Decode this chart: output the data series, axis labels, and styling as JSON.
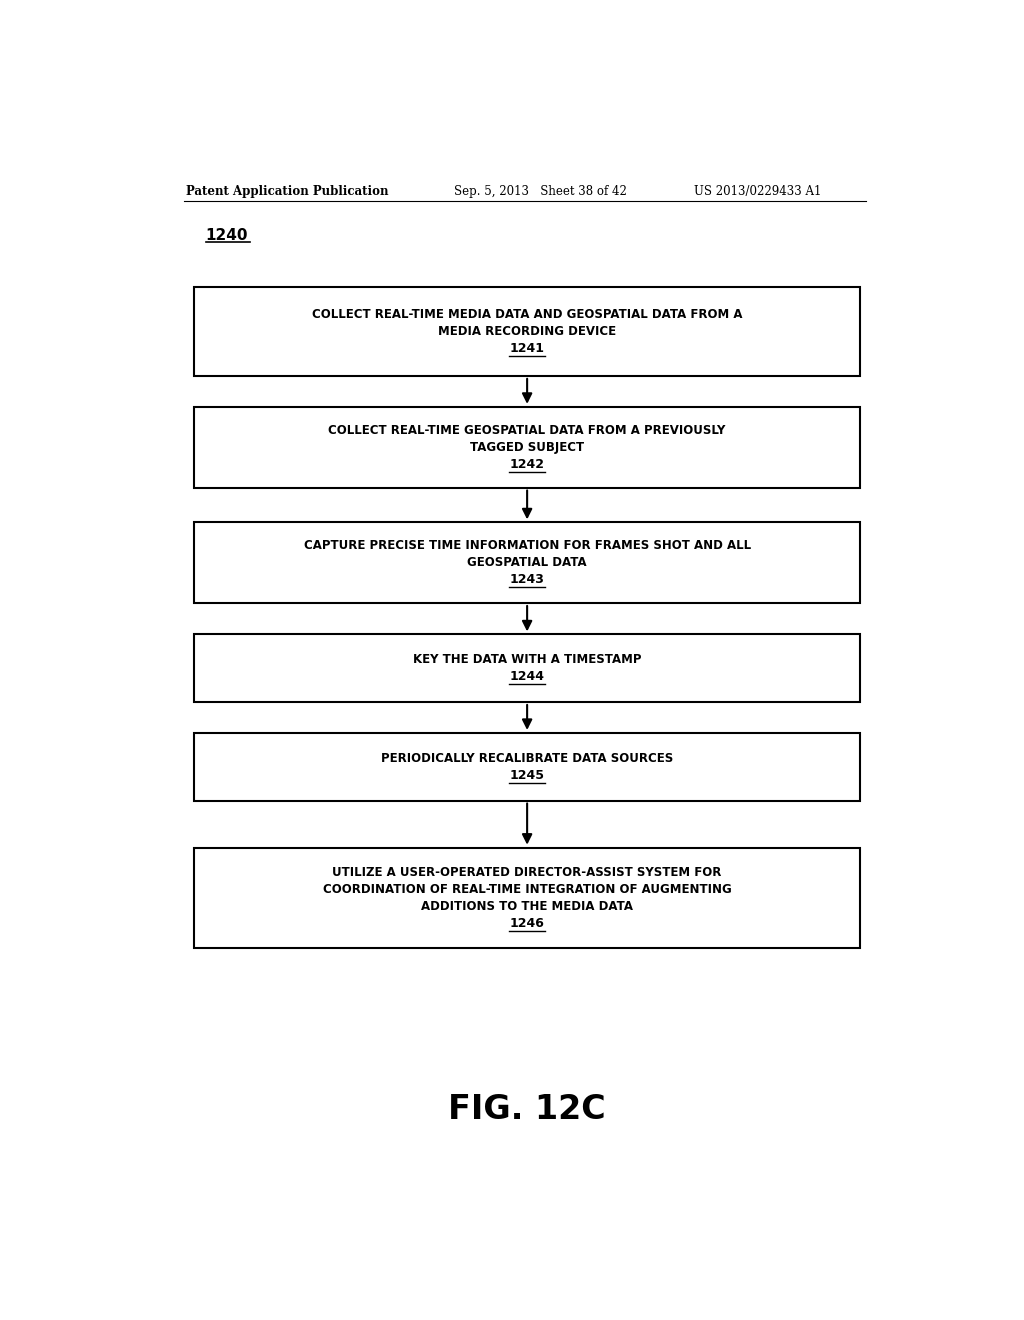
{
  "background_color": "#ffffff",
  "header_left": "Patent Application Publication",
  "header_mid": "Sep. 5, 2013   Sheet 38 of 42",
  "header_right": "US 2013/0229433 A1",
  "diagram_label": "1240",
  "figure_label": "FIG. 12C",
  "boxes": [
    {
      "lines": [
        "COLLECT REAL-TIME MEDIA DATA AND GEOSPATIAL DATA FROM A",
        "MEDIA RECORDING DEVICE"
      ],
      "ref": "1241"
    },
    {
      "lines": [
        "COLLECT REAL-TIME GEOSPATIAL DATA FROM A PREVIOUSLY",
        "TAGGED SUBJECT"
      ],
      "ref": "1242"
    },
    {
      "lines": [
        "CAPTURE PRECISE TIME INFORMATION FOR FRAMES SHOT AND ALL",
        "GEOSPATIAL DATA"
      ],
      "ref": "1243"
    },
    {
      "lines": [
        "KEY THE DATA WITH A TIMESTAMP"
      ],
      "ref": "1244"
    },
    {
      "lines": [
        "PERIODICALLY RECALIBRATE DATA SOURCES"
      ],
      "ref": "1245"
    },
    {
      "lines": [
        "UTILIZE A USER-OPERATED DIRECTOR-ASSIST SYSTEM FOR",
        "COORDINATION OF REAL-TIME INTEGRATION OF AUGMENTING",
        "ADDITIONS TO THE MEDIA DATA"
      ],
      "ref": "1246"
    }
  ]
}
